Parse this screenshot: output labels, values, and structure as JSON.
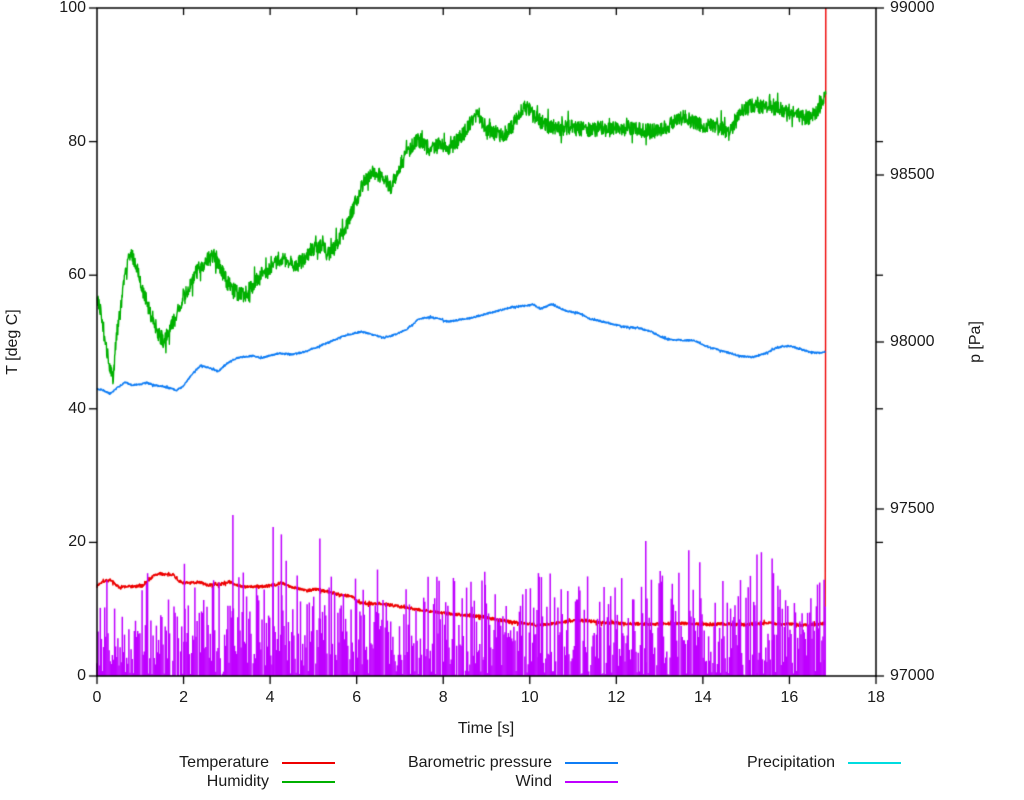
{
  "chart_data": {
    "type": "line",
    "title": "",
    "xlabel": "Time [s]",
    "ylabel": "T [deg C]",
    "y2label": "p [Pa]",
    "xlim": [
      0,
      18
    ],
    "ylim": [
      0,
      100
    ],
    "y2lim": [
      97000,
      99000
    ],
    "x_ticks": [
      0,
      2,
      4,
      6,
      8,
      10,
      12,
      14,
      16,
      18
    ],
    "y_ticks": [
      0,
      20,
      40,
      60,
      80,
      100
    ],
    "y2_ticks": [
      97000,
      97500,
      98000,
      98500,
      99000
    ],
    "grid": false,
    "legend_position": "below",
    "axis_color": "#000000",
    "series": [
      {
        "name": "Temperature",
        "slug": "temperature",
        "color": "#ee0000",
        "axis": "y",
        "noise_amp": 0.22,
        "note": "last sample jumps vertically to 100 at t=16.84",
        "points": [
          [
            0,
            13.4
          ],
          [
            0.08,
            14.0
          ],
          [
            0.2,
            14.3
          ],
          [
            0.35,
            14.2
          ],
          [
            0.5,
            13.3
          ],
          [
            0.7,
            13.4
          ],
          [
            0.9,
            13.4
          ],
          [
            1.05,
            13.5
          ],
          [
            1.2,
            14.4
          ],
          [
            1.35,
            15.2
          ],
          [
            1.5,
            15.3
          ],
          [
            1.65,
            15.1
          ],
          [
            1.75,
            15.3
          ],
          [
            1.85,
            14.5
          ],
          [
            1.95,
            14.0
          ],
          [
            2.15,
            13.9
          ],
          [
            2.35,
            14.1
          ],
          [
            2.55,
            13.6
          ],
          [
            2.75,
            13.7
          ],
          [
            2.9,
            13.8
          ],
          [
            3.05,
            14.1
          ],
          [
            3.25,
            13.6
          ],
          [
            3.45,
            13.3
          ],
          [
            3.65,
            13.4
          ],
          [
            3.85,
            13.4
          ],
          [
            4.1,
            13.6
          ],
          [
            4.25,
            14.0
          ],
          [
            4.4,
            13.5
          ],
          [
            4.6,
            13.2
          ],
          [
            4.85,
            12.8
          ],
          [
            5.05,
            13.0
          ],
          [
            5.3,
            12.7
          ],
          [
            5.6,
            12.2
          ],
          [
            5.9,
            11.9
          ],
          [
            6.05,
            11.0
          ],
          [
            6.2,
            10.8
          ],
          [
            6.5,
            10.9
          ],
          [
            6.9,
            10.5
          ],
          [
            7.2,
            10.2
          ],
          [
            7.6,
            9.8
          ],
          [
            8.0,
            9.4
          ],
          [
            8.5,
            9.1
          ],
          [
            8.9,
            8.9
          ],
          [
            9.2,
            8.5
          ],
          [
            9.6,
            8.1
          ],
          [
            10.0,
            7.8
          ],
          [
            10.2,
            7.6
          ],
          [
            10.6,
            7.9
          ],
          [
            11.0,
            8.3
          ],
          [
            11.3,
            8.3
          ],
          [
            11.7,
            8.0
          ],
          [
            12.1,
            7.9
          ],
          [
            12.5,
            7.8
          ],
          [
            13.0,
            7.8
          ],
          [
            13.5,
            7.9
          ],
          [
            14.0,
            7.7
          ],
          [
            14.5,
            7.8
          ],
          [
            15.0,
            7.7
          ],
          [
            15.5,
            7.9
          ],
          [
            16.0,
            7.8
          ],
          [
            16.3,
            7.6
          ],
          [
            16.55,
            7.7
          ],
          [
            16.8,
            7.9
          ],
          [
            16.83,
            7.9
          ],
          [
            16.84,
            100
          ]
        ]
      },
      {
        "name": "Humidity",
        "slug": "humidity",
        "color": "#00b000",
        "axis": "y",
        "noise_amp": 1.15,
        "points": [
          [
            0,
            57
          ],
          [
            0.1,
            54
          ],
          [
            0.2,
            50
          ],
          [
            0.3,
            46
          ],
          [
            0.37,
            44.5
          ],
          [
            0.45,
            51
          ],
          [
            0.55,
            55
          ],
          [
            0.65,
            60
          ],
          [
            0.75,
            63.5
          ],
          [
            0.85,
            62.5
          ],
          [
            1.0,
            59
          ],
          [
            1.2,
            55
          ],
          [
            1.4,
            51.5
          ],
          [
            1.55,
            50
          ],
          [
            1.7,
            52
          ],
          [
            1.9,
            55
          ],
          [
            2.1,
            58
          ],
          [
            2.3,
            60.5
          ],
          [
            2.5,
            62
          ],
          [
            2.7,
            63
          ],
          [
            2.85,
            61
          ],
          [
            3.0,
            59
          ],
          [
            3.2,
            57.5
          ],
          [
            3.4,
            57
          ],
          [
            3.6,
            58.5
          ],
          [
            3.8,
            60
          ],
          [
            4.0,
            61
          ],
          [
            4.2,
            62.5
          ],
          [
            4.4,
            62
          ],
          [
            4.6,
            61.5
          ],
          [
            4.8,
            62.5
          ],
          [
            5.0,
            64
          ],
          [
            5.2,
            64.5
          ],
          [
            5.35,
            63
          ],
          [
            5.5,
            64.2
          ],
          [
            5.65,
            66
          ],
          [
            5.8,
            68
          ],
          [
            6.0,
            71.3
          ],
          [
            6.2,
            74.5
          ],
          [
            6.35,
            75.5
          ],
          [
            6.5,
            75
          ],
          [
            6.65,
            74.3
          ],
          [
            6.8,
            73
          ],
          [
            6.95,
            76
          ],
          [
            7.1,
            77.5
          ],
          [
            7.3,
            79.5
          ],
          [
            7.45,
            80.2
          ],
          [
            7.6,
            79.3
          ],
          [
            7.75,
            78.8
          ],
          [
            7.9,
            79.6
          ],
          [
            8.1,
            78.7
          ],
          [
            8.3,
            80
          ],
          [
            8.5,
            81.5
          ],
          [
            8.65,
            83
          ],
          [
            8.8,
            84.2
          ],
          [
            8.95,
            82.5
          ],
          [
            9.15,
            81.3
          ],
          [
            9.35,
            80.8
          ],
          [
            9.55,
            81.8
          ],
          [
            9.7,
            83.5
          ],
          [
            9.87,
            85.4
          ],
          [
            10.0,
            84.5
          ],
          [
            10.2,
            83.2
          ],
          [
            10.45,
            82.3
          ],
          [
            10.7,
            82
          ],
          [
            11.0,
            82.1
          ],
          [
            11.3,
            81.7
          ],
          [
            11.6,
            82
          ],
          [
            11.9,
            81.8
          ],
          [
            12.2,
            82
          ],
          [
            12.5,
            81.9
          ],
          [
            12.8,
            81.5
          ],
          [
            13.1,
            82
          ],
          [
            13.35,
            83
          ],
          [
            13.55,
            83.7
          ],
          [
            13.75,
            83
          ],
          [
            14.0,
            82.4
          ],
          [
            14.2,
            82.7
          ],
          [
            14.4,
            82.3
          ],
          [
            14.6,
            81.3
          ],
          [
            14.78,
            83.2
          ],
          [
            14.95,
            84.9
          ],
          [
            15.2,
            85.4
          ],
          [
            15.5,
            85.2
          ],
          [
            15.8,
            84.8
          ],
          [
            16.1,
            84.4
          ],
          [
            16.4,
            83.3
          ],
          [
            16.6,
            84.2
          ],
          [
            16.77,
            86.2
          ],
          [
            16.84,
            86.5
          ]
        ]
      },
      {
        "name": "Barometric pressure",
        "slug": "barometric-pressure",
        "color": "#0f7df5",
        "axis": "y2",
        "noise_amp": 2.5,
        "points": [
          [
            0,
            97860
          ],
          [
            0.15,
            97855
          ],
          [
            0.3,
            97845
          ],
          [
            0.5,
            97866
          ],
          [
            0.65,
            97880
          ],
          [
            0.8,
            97871
          ],
          [
            1.0,
            97873
          ],
          [
            1.15,
            97878
          ],
          [
            1.3,
            97871
          ],
          [
            1.5,
            97868
          ],
          [
            1.7,
            97861
          ],
          [
            1.85,
            97856
          ],
          [
            2.0,
            97868
          ],
          [
            2.2,
            97905
          ],
          [
            2.4,
            97930
          ],
          [
            2.6,
            97922
          ],
          [
            2.8,
            97912
          ],
          [
            3.0,
            97935
          ],
          [
            3.2,
            97950
          ],
          [
            3.35,
            97955
          ],
          [
            3.6,
            97958
          ],
          [
            3.8,
            97952
          ],
          [
            4.0,
            97960
          ],
          [
            4.2,
            97966
          ],
          [
            4.5,
            97963
          ],
          [
            4.8,
            97971
          ],
          [
            5.0,
            97980
          ],
          [
            5.2,
            97991
          ],
          [
            5.4,
            98001
          ],
          [
            5.6,
            98013
          ],
          [
            5.8,
            98022
          ],
          [
            6.1,
            98031
          ],
          [
            6.4,
            98021
          ],
          [
            6.65,
            98012
          ],
          [
            6.9,
            98023
          ],
          [
            7.15,
            98037
          ],
          [
            7.45,
            98070
          ],
          [
            7.7,
            98074
          ],
          [
            7.9,
            98070
          ],
          [
            8.1,
            98061
          ],
          [
            8.35,
            98066
          ],
          [
            8.6,
            98071
          ],
          [
            8.9,
            98081
          ],
          [
            9.2,
            98091
          ],
          [
            9.6,
            98105
          ],
          [
            9.9,
            98109
          ],
          [
            10.1,
            98111
          ],
          [
            10.25,
            98099
          ],
          [
            10.5,
            98113
          ],
          [
            10.7,
            98101
          ],
          [
            10.9,
            98091
          ],
          [
            11.1,
            98088
          ],
          [
            11.4,
            98069
          ],
          [
            11.8,
            98058
          ],
          [
            12.15,
            98046
          ],
          [
            12.5,
            98042
          ],
          [
            12.8,
            98031
          ],
          [
            13.1,
            98011
          ],
          [
            13.4,
            98006
          ],
          [
            13.8,
            98004
          ],
          [
            14.1,
            97986
          ],
          [
            14.5,
            97971
          ],
          [
            14.9,
            97957
          ],
          [
            15.15,
            97955
          ],
          [
            15.45,
            97966
          ],
          [
            15.7,
            97983
          ],
          [
            16.0,
            97988
          ],
          [
            16.2,
            97981
          ],
          [
            16.45,
            97971
          ],
          [
            16.65,
            97967
          ],
          [
            16.83,
            97970
          ]
        ]
      },
      {
        "name": "Wind",
        "slug": "wind",
        "color": "#bf00ff",
        "axis": "y",
        "style": "impulses",
        "t_range": [
          0,
          16.83
        ],
        "seed": 12,
        "distribution": {
          "zero_prob": 0.12,
          "low_band": [
            1.5,
            7,
            0.48
          ],
          "mid_band": [
            7,
            12,
            0.28
          ],
          "high_band": [
            12,
            15.5,
            0.095
          ],
          "tall_min": 13.5,
          "tall_default_max": 17,
          "tall_base_prob": 0.012,
          "zones": [
            {
              "t": [
                2.8,
                5.3
              ],
              "prob": 0.035,
              "max": 24
            },
            {
              "t": [
                11.9,
                16.85
              ],
              "prob": 0.03,
              "max": 20
            },
            {
              "t": [
                5.5,
                8.6
              ],
              "prob": 0.006,
              "max": 16
            }
          ]
        },
        "spikes": [
          [
            2.02,
            16.8
          ],
          [
            3.14,
            24.1
          ],
          [
            4.07,
            22.3
          ],
          [
            4.26,
            21.2
          ],
          [
            5.15,
            20.6
          ],
          [
            8.96,
            15.6
          ],
          [
            10.2,
            15.4
          ],
          [
            12.68,
            20.2
          ],
          [
            15.25,
            18.2
          ],
          [
            15.6,
            17.6
          ],
          [
            16.8,
            14.4
          ]
        ]
      },
      {
        "name": "Precipitation",
        "slug": "precipitation",
        "color": "#00dce0",
        "axis": "y",
        "constant_value": 0,
        "visible_in_plot": false
      }
    ]
  },
  "render": {
    "seed_curves": 7,
    "background": "#ffffff",
    "text_color": "#1a1a1a"
  }
}
